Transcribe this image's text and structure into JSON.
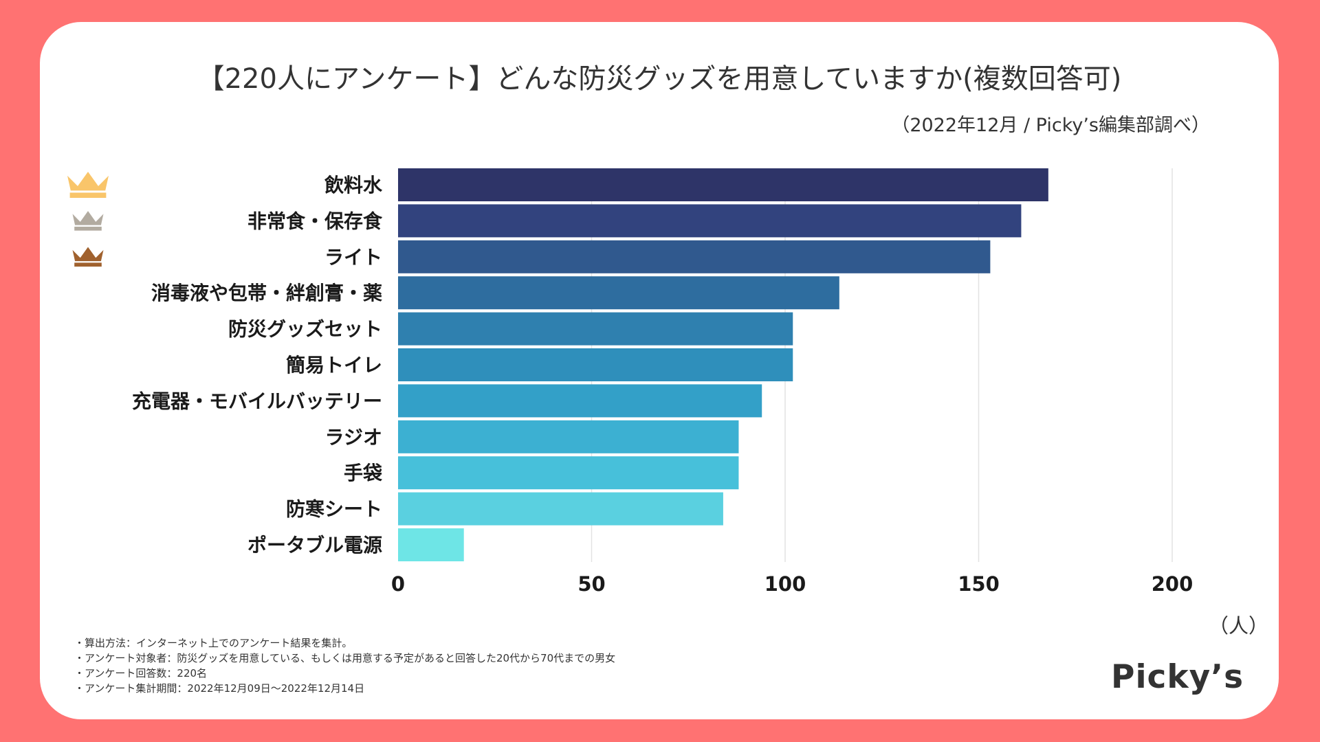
{
  "title": "【220人にアンケート】どんな防災グッズを用意していますか(複数回答可)",
  "subtitle": "（2022年12月 / Picky’s編集部調べ）",
  "unit_label": "（人）",
  "brand": "Picky’s",
  "colors": {
    "background": "#ff7272",
    "card": "#ffffff",
    "gold": "#f9c56a",
    "silver": "#b2aba0",
    "bronze": "#a0612e",
    "bars": [
      "#2e3468",
      "#32437e",
      "#30598e",
      "#2e6d9f",
      "#2f80af",
      "#2f8fbb",
      "#33a0c8",
      "#3cb0d2",
      "#47c0da",
      "#5ad0e0",
      "#6ee5e6"
    ]
  },
  "crowns": [
    {
      "rank": 1,
      "icon": "gold-crown-icon"
    },
    {
      "rank": 2,
      "icon": "silver-crown-icon"
    },
    {
      "rank": 3,
      "icon": "bronze-crown-icon"
    }
  ],
  "notes": [
    "・算出方法：インターネット上でのアンケート結果を集計。",
    "・アンケート対象者：防災グッズを用意している、もしくは用意する予定があると回答した20代から70代までの男女",
    "・アンケート回答数：220名",
    "・アンケート集計期間：2022年12月09日〜2022年12月14日"
  ],
  "chart_data": {
    "type": "bar",
    "orientation": "horizontal",
    "categories": [
      "飲料水",
      "非常食・保存食",
      "ライト",
      "消毒液や包帯・絆創膏・薬",
      "防災グッズセット",
      "簡易トイレ",
      "充電器・モバイルバッテリー",
      "ラジオ",
      "手袋",
      "防寒シート",
      "ポータブル電源"
    ],
    "values": [
      168,
      161,
      153,
      114,
      102,
      102,
      94,
      88,
      88,
      84,
      17
    ],
    "xlim": [
      0,
      200
    ],
    "xticks": [
      0,
      50,
      100,
      150,
      200
    ],
    "xlabel": "（人）",
    "ylabel": "",
    "grid": true,
    "legend": "none"
  }
}
